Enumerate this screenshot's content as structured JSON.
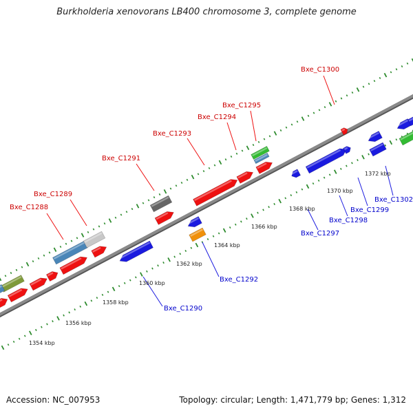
{
  "title": "Burkholderia xenovorans LB400 chromosome 3, complete genome",
  "footer": {
    "accession": "Accession: NC_007953",
    "summary": "Topology: circular; Length: 1,471,779 bp; Genes: 1,312"
  },
  "colors": {
    "backbone": "#8a8a8a",
    "ticks": "#2e8b2e",
    "red": "#ee1111",
    "blue": "#1a1adf",
    "steelblue": "#4a86b8",
    "olive": "#7f9a3a",
    "gray": "#666666",
    "lightgray": "#c8c8c8",
    "orange": "#f0900a",
    "green": "#33bb33"
  },
  "kbp_labels": [
    "1354 kbp",
    "1356 kbp",
    "1358 kbp",
    "1360 kbp",
    "1362 kbp",
    "1364 kbp",
    "1366 kbp",
    "1368 kbp",
    "1370 kbp",
    "1372 kbp"
  ],
  "gene_labels_top": [
    "Bxe_C1288",
    "Bxe_C1289",
    "Bxe_C1291",
    "Bxe_C1293",
    "Bxe_C1294",
    "Bxe_C1295",
    "Bxe_C1300"
  ],
  "gene_labels_bottom": [
    "Bxe_C1290",
    "Bxe_C1292",
    "Bxe_C1297",
    "Bxe_C1298",
    "Bxe_C1299",
    "Bxe_C1302"
  ]
}
